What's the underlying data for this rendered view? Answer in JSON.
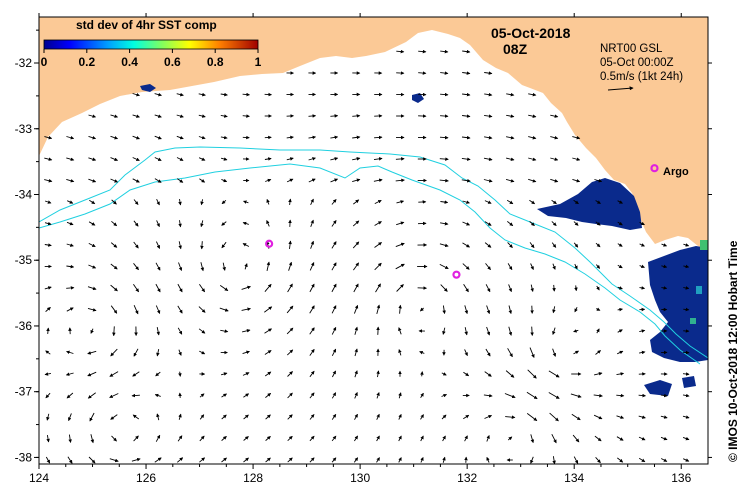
{
  "map": {
    "date": "05-Oct-2018",
    "time": "08Z",
    "colorbar": {
      "title": "std dev of 4hr SST comp",
      "ticks": [
        "0",
        "0.2",
        "0.4",
        "0.6",
        "0.8",
        "1"
      ],
      "range": [
        0,
        1
      ]
    },
    "info": {
      "line1": "NRT00 GSL",
      "line2": "05-Oct 00:00Z",
      "line3": "0.5m/s (1kt 24h)"
    },
    "argo_label": "Argo",
    "credit": "© IMOS 10-Oct-2018 12:00 Hobart Time",
    "x_ticks": [
      "124",
      "126",
      "128",
      "130",
      "132",
      "134",
      "136"
    ],
    "y_ticks": [
      "-32",
      "-33",
      "-34",
      "-35",
      "-36",
      "-37",
      "-38"
    ],
    "lon_range": [
      124,
      136.5
    ],
    "lat_range": [
      -38.1,
      -31.3
    ],
    "argo_floats": [
      {
        "lon": 128.3,
        "lat": -34.75
      },
      {
        "lon": 131.8,
        "lat": -35.22
      },
      {
        "lon": 135.5,
        "lat": -33.6
      }
    ],
    "colors": {
      "land": "#fbc996",
      "contour": "#20d0e0",
      "argo": "#e020e0",
      "sst_high": "#0a2a8c"
    }
  }
}
